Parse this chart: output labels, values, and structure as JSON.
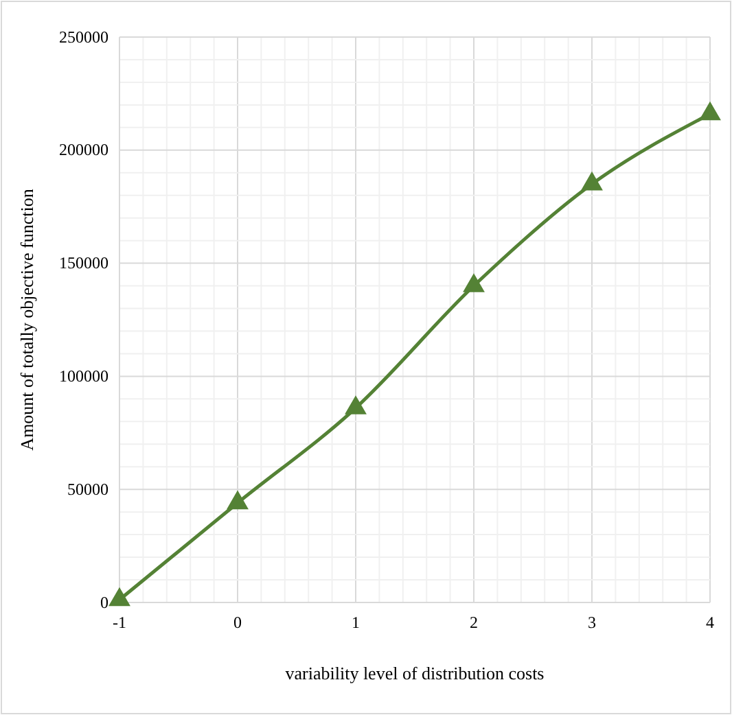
{
  "chart_data": {
    "type": "line",
    "xlabel": "variability level of distribution costs",
    "ylabel": "Amount of totally objective function",
    "x": [
      -1,
      0,
      1,
      2,
      3,
      4
    ],
    "series": [
      {
        "color": "#548235",
        "values": [
          1200,
          44000,
          86000,
          140000,
          185000,
          216000
        ]
      }
    ],
    "xlim": [
      -1,
      4
    ],
    "xticks": [
      -1,
      0,
      1,
      2,
      3,
      4
    ],
    "ylim": [
      0,
      250000
    ],
    "yticks": [
      0,
      50000,
      100000,
      150000,
      200000,
      250000
    ],
    "grid": true,
    "marker": "triangle",
    "line_style": "solid"
  }
}
